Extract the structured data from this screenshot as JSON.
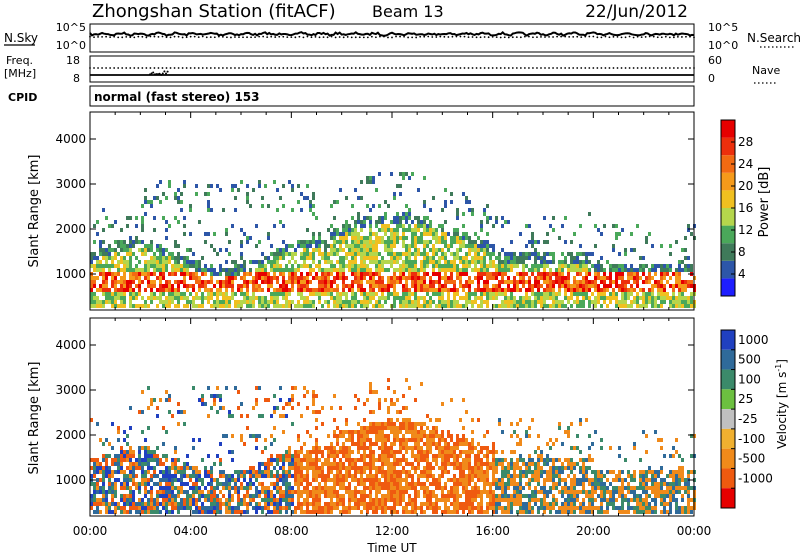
{
  "header": {
    "station": "Zhongshan Station (fitACF)",
    "beam": "Beam 13",
    "date": "22/Jun/2012"
  },
  "noise_panel": {
    "left_label": "N.Sky",
    "left_ticks": [
      "10^5",
      "10^0"
    ],
    "right_label": "N.Search",
    "right_ticks": [
      "10^5",
      "10^0"
    ]
  },
  "freq_panel": {
    "left_label_line1": "Freq.",
    "left_label_line2": "[MHz]",
    "left_ticks": [
      "18",
      "8"
    ],
    "right_label": "Nave",
    "right_ticks": [
      "60",
      "0"
    ]
  },
  "cpid": {
    "label": "CPID",
    "text": "normal (fast stereo) 153"
  },
  "chart_data": [
    {
      "type": "heatmap",
      "name": "power",
      "ylabel": "Slant Range [km]",
      "xlabel": "Time UT",
      "xticks": [
        "00:00",
        "04:00",
        "08:00",
        "12:00",
        "16:00",
        "20:00",
        "00:00"
      ],
      "x_hours": [
        0,
        4,
        8,
        12,
        16,
        20,
        24
      ],
      "yticks": [
        "1000",
        "2000",
        "3000",
        "4000"
      ],
      "yvalues": [
        1000,
        2000,
        3000,
        4000
      ],
      "ylim": [
        200,
        4600
      ],
      "colorbar": {
        "label": "Power [dB]",
        "ticks": [
          "4",
          "8",
          "12",
          "16",
          "20",
          "24",
          "28"
        ],
        "tick_values": [
          4,
          8,
          12,
          16,
          20,
          24,
          28
        ],
        "range": [
          0,
          32
        ],
        "colors": [
          "#1e1eff",
          "#2d56a8",
          "#3f7a5a",
          "#4aa85a",
          "#b5d64c",
          "#f0c020",
          "#f59a1a",
          "#f26a12",
          "#ec2f0c",
          "#e60000"
        ]
      }
    },
    {
      "type": "heatmap",
      "name": "velocity",
      "ylabel": "Slant Range [km]",
      "xlabel": "Time UT",
      "xticks": [
        "00:00",
        "04:00",
        "08:00",
        "12:00",
        "16:00",
        "20:00",
        "00:00"
      ],
      "x_hours": [
        0,
        4,
        8,
        12,
        16,
        20,
        24
      ],
      "yticks": [
        "1000",
        "2000",
        "3000",
        "4000"
      ],
      "yvalues": [
        1000,
        2000,
        3000,
        4000
      ],
      "ylim": [
        200,
        4600
      ],
      "colorbar": {
        "label_main": "Velocity [m s",
        "label_sup": "-1",
        "label_end": "]",
        "ticks": [
          "1000",
          "500",
          "100",
          "25",
          "-25",
          "-100",
          "-500",
          "-1000"
        ],
        "tick_values": [
          1000,
          500,
          100,
          25,
          -25,
          -100,
          -500,
          -1000
        ],
        "colors": [
          "#2040c0",
          "#2f6a9a",
          "#3b8a6a",
          "#6cc040",
          "#c0c0c0",
          "#f0b030",
          "#f08a1a",
          "#ef5a10",
          "#e60000"
        ]
      }
    }
  ],
  "xaxis_title": "Time UT"
}
